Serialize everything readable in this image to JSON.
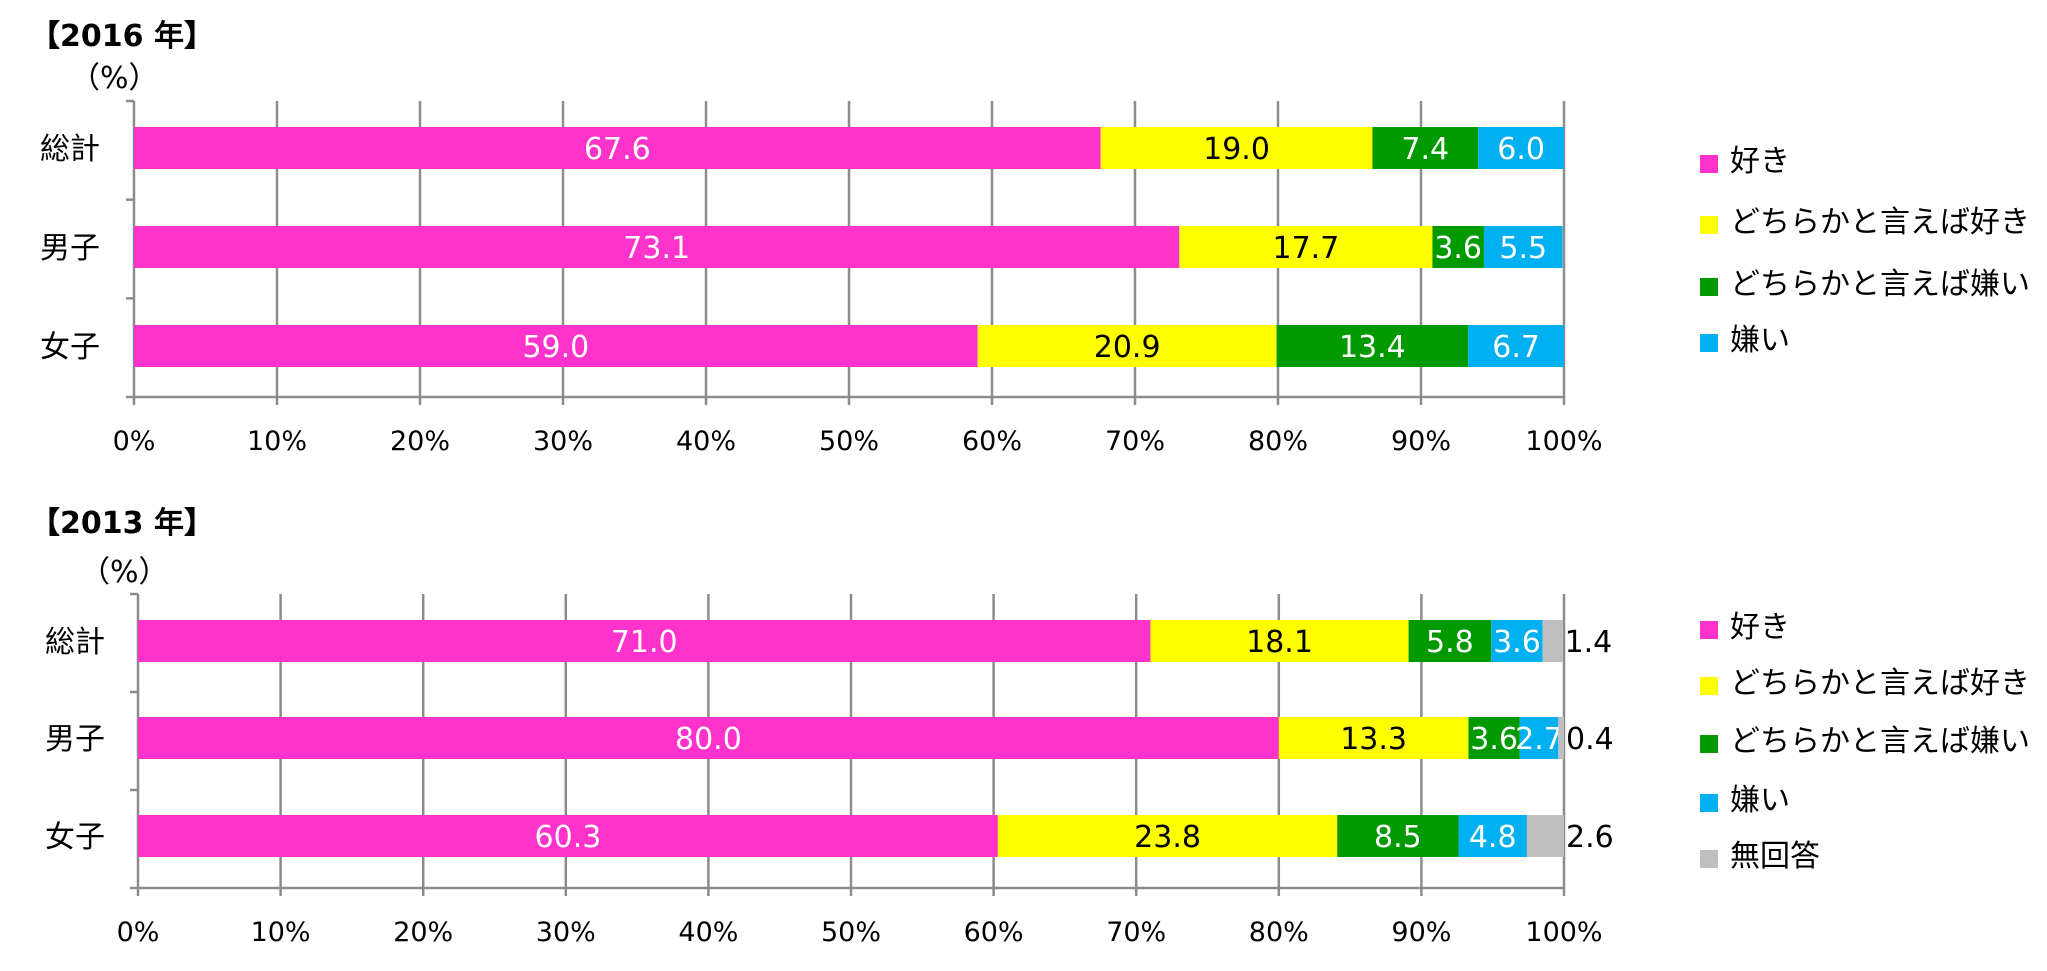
{
  "chart_data": [
    {
      "type": "bar",
      "orientation": "horizontal",
      "stacked": "percent",
      "title": "【2016 年】",
      "unit_label": "（%）",
      "categories": [
        "総計",
        "男子",
        "女子"
      ],
      "series": [
        {
          "name": "好き",
          "color": "#ff33cc",
          "label_color": "#ffffff",
          "values": [
            67.6,
            73.1,
            59.0
          ],
          "labels": [
            "67.6",
            "73.1",
            "59.0"
          ]
        },
        {
          "name": "どちらかと言えば好き",
          "color": "#ffff00",
          "label_color": "#000000",
          "values": [
            19.0,
            17.7,
            20.9
          ],
          "labels": [
            "19.0",
            "17.7",
            "20.9"
          ]
        },
        {
          "name": "どちらかと言えば嫌い",
          "color": "#009900",
          "label_color": "#ffffff",
          "values": [
            7.4,
            3.6,
            13.4
          ],
          "labels": [
            "7.4",
            "3.6",
            "13.4"
          ]
        },
        {
          "name": "嫌い",
          "color": "#00b0f0",
          "label_color": "#ffffff",
          "values": [
            6.0,
            5.5,
            6.7
          ],
          "labels": [
            "6.0",
            "5.5",
            "6.7"
          ]
        }
      ],
      "xlim": [
        0,
        100
      ],
      "xticks": [
        "0%",
        "10%",
        "20%",
        "30%",
        "40%",
        "50%",
        "60%",
        "70%",
        "80%",
        "90%",
        "100%"
      ],
      "grid": true,
      "legend": "right"
    },
    {
      "type": "bar",
      "orientation": "horizontal",
      "stacked": "percent",
      "title": "【2013 年】",
      "unit_label": "（%）",
      "categories": [
        "総計",
        "男子",
        "女子"
      ],
      "series": [
        {
          "name": "好き",
          "color": "#ff33cc",
          "label_color": "#ffffff",
          "values": [
            71.0,
            80.0,
            60.3
          ],
          "labels": [
            "71.0",
            "80.0",
            "60.3"
          ]
        },
        {
          "name": "どちらかと言えば好き",
          "color": "#ffff00",
          "label_color": "#000000",
          "values": [
            18.1,
            13.3,
            23.8
          ],
          "labels": [
            "18.1",
            "13.3",
            "23.8"
          ]
        },
        {
          "name": "どちらかと言えば嫌い",
          "color": "#009900",
          "label_color": "#ffffff",
          "values": [
            5.8,
            3.6,
            8.5
          ],
          "labels": [
            "5.8",
            "3.6",
            "8.5"
          ]
        },
        {
          "name": "嫌い",
          "color": "#00b0f0",
          "label_color": "#ffffff",
          "values": [
            3.6,
            2.7,
            4.8
          ],
          "labels": [
            "3.6",
            "2.7",
            "4.8"
          ]
        },
        {
          "name": "無回答",
          "color": "#bfbfbf",
          "label_color": "#000000",
          "values": [
            1.4,
            0.4,
            2.6
          ],
          "labels": [
            "1.4",
            "0.4",
            "2.6"
          ],
          "label_outside": true
        }
      ],
      "xlim": [
        0,
        100
      ],
      "xticks": [
        "0%",
        "10%",
        "20%",
        "30%",
        "40%",
        "50%",
        "60%",
        "70%",
        "80%",
        "90%",
        "100%"
      ],
      "grid": true,
      "legend": "right"
    }
  ]
}
